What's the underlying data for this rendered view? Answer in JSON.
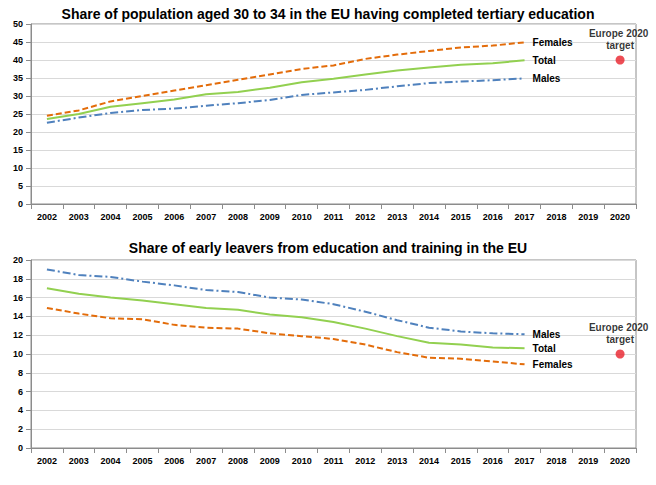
{
  "chart_data": [
    {
      "type": "line",
      "title": "Share of population aged 30 to 34 in the EU having completed tertiary education",
      "categories": [
        "2002",
        "2003",
        "2004",
        "2005",
        "2006",
        "2007",
        "2008",
        "2009",
        "2010",
        "2011",
        "2012",
        "2013",
        "2014",
        "2015",
        "2016",
        "2017",
        "2018",
        "2019",
        "2020"
      ],
      "series": [
        {
          "name": "Females",
          "color": "#e36c0a",
          "line_style": "dashed",
          "values": [
            24.5,
            26,
            28.5,
            30,
            31.5,
            33,
            34.5,
            36,
            37.5,
            38.5,
            40.3,
            41.5,
            42.5,
            43.5,
            44,
            44.9,
            null,
            null,
            null
          ]
        },
        {
          "name": "Total",
          "color": "#92d050",
          "line_style": "solid",
          "values": [
            23.6,
            25,
            27,
            28,
            29,
            30.5,
            31.1,
            32.3,
            33.8,
            34.8,
            36,
            37.1,
            37.9,
            38.7,
            39.1,
            39.9,
            null,
            null,
            null
          ]
        },
        {
          "name": "Males",
          "color": "#4f81bd",
          "line_style": "dashdot",
          "values": [
            22.6,
            24,
            25.3,
            26.1,
            26.5,
            27.3,
            28,
            28.9,
            30.3,
            31,
            31.7,
            32.7,
            33.6,
            34,
            34.4,
            34.9,
            null,
            null,
            null
          ]
        },
        {
          "name": "Europe 2020 target",
          "type": "scatter",
          "marker": "circle",
          "color": "#e8202a",
          "values": [
            null,
            null,
            null,
            null,
            null,
            null,
            null,
            null,
            null,
            null,
            null,
            null,
            null,
            null,
            null,
            null,
            null,
            null,
            40
          ]
        }
      ],
      "ylim": [
        0,
        50
      ],
      "yticks": [
        0,
        5,
        10,
        15,
        20,
        25,
        30,
        35,
        40,
        45,
        50
      ],
      "grid": true
    },
    {
      "type": "line",
      "title": "Share of early leavers from education and training in the EU",
      "categories": [
        "2002",
        "2003",
        "2004",
        "2005",
        "2006",
        "2007",
        "2008",
        "2009",
        "2010",
        "2011",
        "2012",
        "2013",
        "2014",
        "2015",
        "2016",
        "2017",
        "2018",
        "2019",
        "2020"
      ],
      "series": [
        {
          "name": "Males",
          "color": "#4f81bd",
          "line_style": "dashdot",
          "values": [
            19.0,
            18.4,
            18.2,
            17.7,
            17.3,
            16.8,
            16.6,
            16.0,
            15.8,
            15.3,
            14.5,
            13.6,
            12.8,
            12.4,
            12.2,
            12.1,
            null,
            null,
            null
          ]
        },
        {
          "name": "Total",
          "color": "#92d050",
          "line_style": "solid",
          "values": [
            17.0,
            16.4,
            16.0,
            15.7,
            15.3,
            14.9,
            14.7,
            14.2,
            13.9,
            13.4,
            12.7,
            11.9,
            11.2,
            11.0,
            10.7,
            10.6,
            null,
            null,
            null
          ]
        },
        {
          "name": "Females",
          "color": "#e36c0a",
          "line_style": "dashed",
          "values": [
            14.9,
            14.3,
            13.8,
            13.7,
            13.1,
            12.8,
            12.7,
            12.2,
            11.9,
            11.6,
            11.0,
            10.2,
            9.6,
            9.5,
            9.2,
            8.9,
            null,
            null,
            null
          ]
        },
        {
          "name": "Europe 2020 target",
          "type": "scatter",
          "marker": "circle",
          "color": "#e8202a",
          "values": [
            null,
            null,
            null,
            null,
            null,
            null,
            null,
            null,
            null,
            null,
            null,
            null,
            null,
            null,
            null,
            null,
            null,
            null,
            10
          ]
        }
      ],
      "ylim": [
        0,
        20
      ],
      "yticks": [
        0,
        2,
        4,
        6,
        8,
        10,
        12,
        14,
        16,
        18,
        20
      ],
      "grid": true
    }
  ]
}
